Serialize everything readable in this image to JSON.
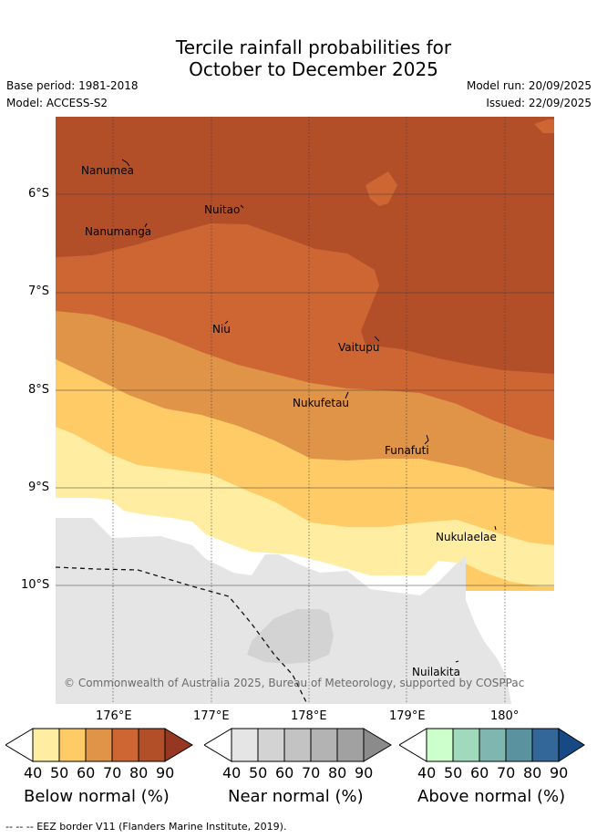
{
  "title": {
    "line1": "Tercile rainfall probabilities for",
    "line2": "October to December 2025"
  },
  "meta": {
    "base_period": "Base period: 1981-2018",
    "model": "Model: ACCESS-S2",
    "model_run": "Model run: 20/09/2025",
    "issued": "Issued: 22/09/2025"
  },
  "axes": {
    "latitude_ticks": [
      "6°S",
      "7°S",
      "8°S",
      "9°S",
      "10°S"
    ],
    "longitude_ticks": [
      "176°E",
      "177°E",
      "178°E",
      "179°E",
      "180°"
    ]
  },
  "places": {
    "nanumea": "Nanumea",
    "nuitao": "Nuitao",
    "nanumanga": "Nanumanga",
    "niu": "Niu",
    "vaitupu": "Vaitupu",
    "nukufetau": "Nukufetau",
    "funafuti": "Funafuti",
    "nukulaelae": "Nukulaelae",
    "nuilakita": "Nuilakita"
  },
  "copyright": "© Commonwealth of Australia 2025, Bureau of Meteorology, supported by COSPPac",
  "colorbars": {
    "below": {
      "label": "Below normal (%)",
      "ticks": [
        "40",
        "50",
        "60",
        "70",
        "80",
        "90"
      ],
      "colors": [
        "#ffeea1",
        "#ffcb66",
        "#e09448",
        "#ce6634",
        "#b24f28",
        "#963821"
      ]
    },
    "near": {
      "label": "Near normal (%)",
      "ticks": [
        "40",
        "50",
        "60",
        "70",
        "80",
        "90"
      ],
      "colors": [
        "#e5e5e5",
        "#d3d3d3",
        "#c3c3c3",
        "#b3b3b3",
        "#a1a1a1",
        "#8b8b8b"
      ]
    },
    "above": {
      "label": "Above normal (%)",
      "ticks": [
        "40",
        "50",
        "60",
        "70",
        "80",
        "90"
      ],
      "colors": [
        "#ccffcc",
        "#a1d9bd",
        "#7fb7b0",
        "#5a92a0",
        "#336699",
        "#174a84"
      ]
    }
  },
  "footer": "--  --  -- EEZ border V11 (Flanders Marine Institute, 2019)."
}
